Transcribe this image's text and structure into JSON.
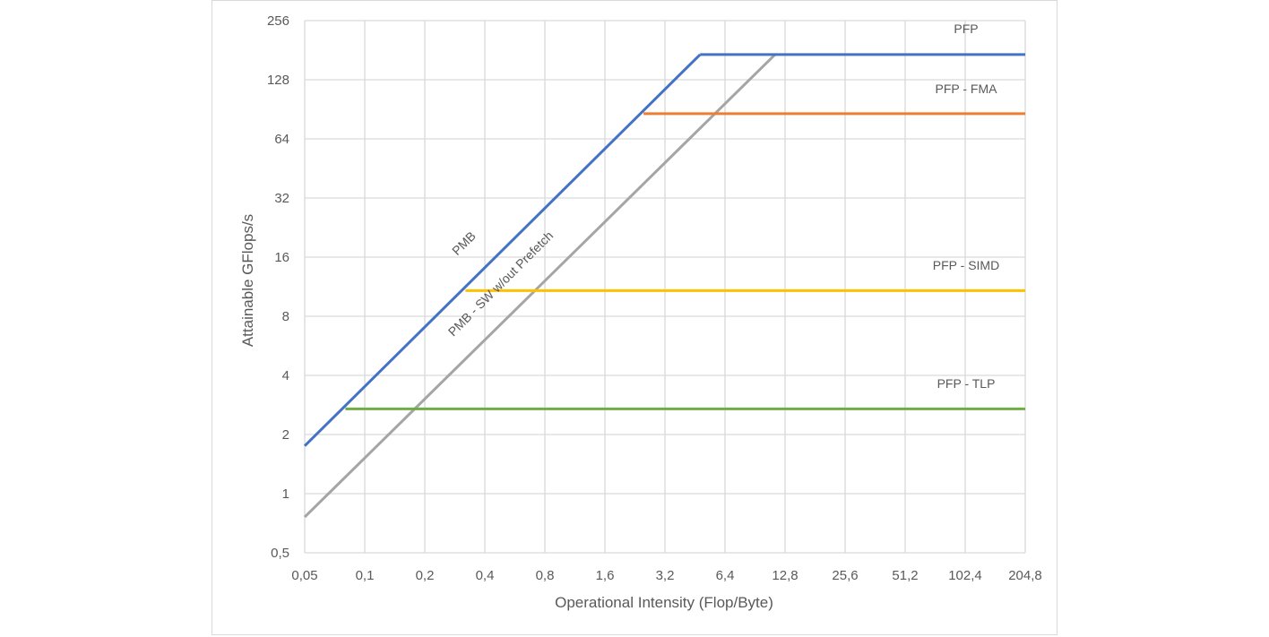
{
  "chart_data": {
    "type": "line",
    "xlabel": "Operational Intensity (Flop/Byte)",
    "ylabel": "Attainable GFlops/s",
    "x_scale": "log2",
    "y_scale": "log2",
    "xlim": [
      0.05,
      204.8
    ],
    "ylim": [
      0.5,
      256
    ],
    "x_ticks": [
      "0,05",
      "0,1",
      "0,2",
      "0,4",
      "0,8",
      "1,6",
      "3,2",
      "6,4",
      "12,8",
      "25,6",
      "51,2",
      "102,4",
      "204,8"
    ],
    "x_tick_values": [
      0.05,
      0.1,
      0.2,
      0.4,
      0.8,
      1.6,
      3.2,
      6.4,
      12.8,
      25.6,
      51.2,
      102.4,
      204.8
    ],
    "y_ticks": [
      "0,5",
      "1",
      "2",
      "4",
      "8",
      "16",
      "32",
      "64",
      "128",
      "256"
    ],
    "y_tick_values": [
      0.5,
      1,
      2,
      4,
      8,
      16,
      32,
      64,
      128,
      256
    ],
    "grid": true,
    "series": [
      {
        "name": "PMB",
        "color": "#4472c4",
        "points": [
          [
            0.05,
            1.75
          ],
          [
            4.8,
            172
          ]
        ]
      },
      {
        "name": "PMB - SW w/out Prefetch",
        "color": "#a5a5a5",
        "points": [
          [
            0.05,
            0.76
          ],
          [
            11.4,
            172
          ]
        ]
      },
      {
        "name": "PFP",
        "color": "#4472c4",
        "points": [
          [
            4.8,
            172
          ],
          [
            204.8,
            172
          ]
        ]
      },
      {
        "name": "PFP - FMA",
        "color": "#ed7d31",
        "points": [
          [
            2.5,
            86
          ],
          [
            204.8,
            86
          ]
        ]
      },
      {
        "name": "PFP - SIMD",
        "color": "#ffc000",
        "points": [
          [
            0.32,
            10.8
          ],
          [
            204.8,
            10.8
          ]
        ]
      },
      {
        "name": "PFP - TLP",
        "color": "#70ad47",
        "points": [
          [
            0.08,
            2.7
          ],
          [
            204.8,
            2.7
          ]
        ]
      }
    ]
  }
}
